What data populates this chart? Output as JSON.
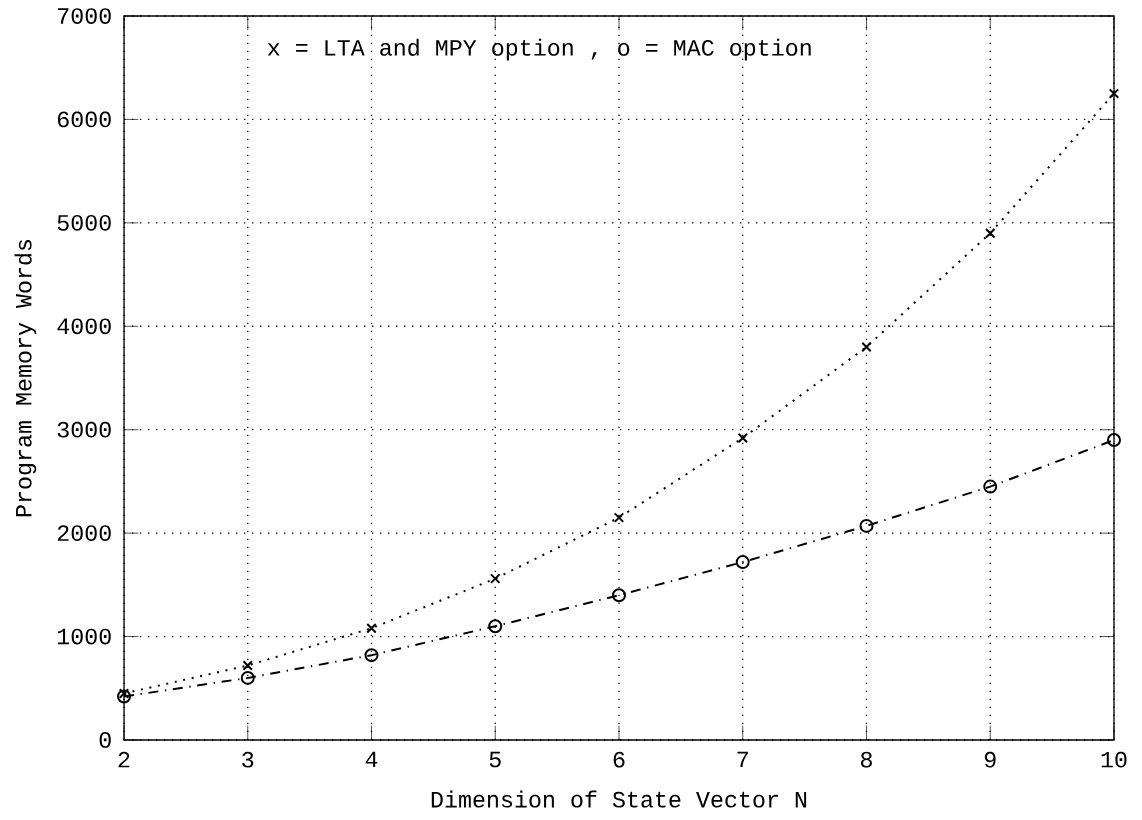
{
  "chart_data": {
    "type": "line",
    "x": [
      2,
      3,
      4,
      5,
      6,
      7,
      8,
      9,
      10
    ],
    "series": [
      {
        "color": "#000000",
        "marker": "cross",
        "line_style": "dotted",
        "values": [
          450,
          720,
          1080,
          1560,
          2150,
          2920,
          3800,
          4900,
          6250
        ]
      },
      {
        "color": "#000000",
        "marker": "circle",
        "line_style": "dashed",
        "values": [
          420,
          600,
          820,
          1100,
          1400,
          1720,
          2070,
          2450,
          2900
        ]
      }
    ],
    "xlabel": "Dimension of State Vector   N",
    "ylabel": "Program Memory Words",
    "annotations": [
      "x = LTA and MPY option ,  o = MAC option"
    ],
    "xlim": [
      2,
      10
    ],
    "xticks": [
      2,
      3,
      4,
      5,
      6,
      7,
      8,
      9,
      10
    ],
    "ylim": [
      0,
      7000
    ],
    "yticks": [
      0,
      1000,
      2000,
      3000,
      4000,
      5000,
      6000,
      7000
    ],
    "grid": true
  }
}
